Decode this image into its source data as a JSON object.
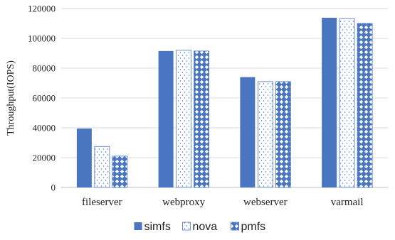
{
  "chart_data": {
    "type": "bar",
    "title": "",
    "xlabel": "",
    "ylabel": "Throughput(IOPS)",
    "categories": [
      "fileserver",
      "webproxy",
      "webserver",
      "varmail"
    ],
    "ylim": [
      0,
      120000
    ],
    "yticks": [
      0,
      20000,
      40000,
      60000,
      80000,
      100000,
      120000
    ],
    "ytick_labels": [
      "0",
      "20000",
      "40000",
      "60000",
      "80000",
      "100000",
      "120000"
    ],
    "grid": true,
    "legend_position": "bottom",
    "series": [
      {
        "name": "simfs",
        "values": [
          39500,
          91500,
          74000,
          113800
        ],
        "color": "#4a76c1",
        "pattern": "solid"
      },
      {
        "name": "nova",
        "values": [
          27500,
          92000,
          71000,
          113200
        ],
        "color": "#4a76c1",
        "pattern": "dotted"
      },
      {
        "name": "pmfs",
        "values": [
          21000,
          91500,
          71000,
          110000
        ],
        "color": "#4a76c1",
        "pattern": "checker"
      }
    ]
  }
}
